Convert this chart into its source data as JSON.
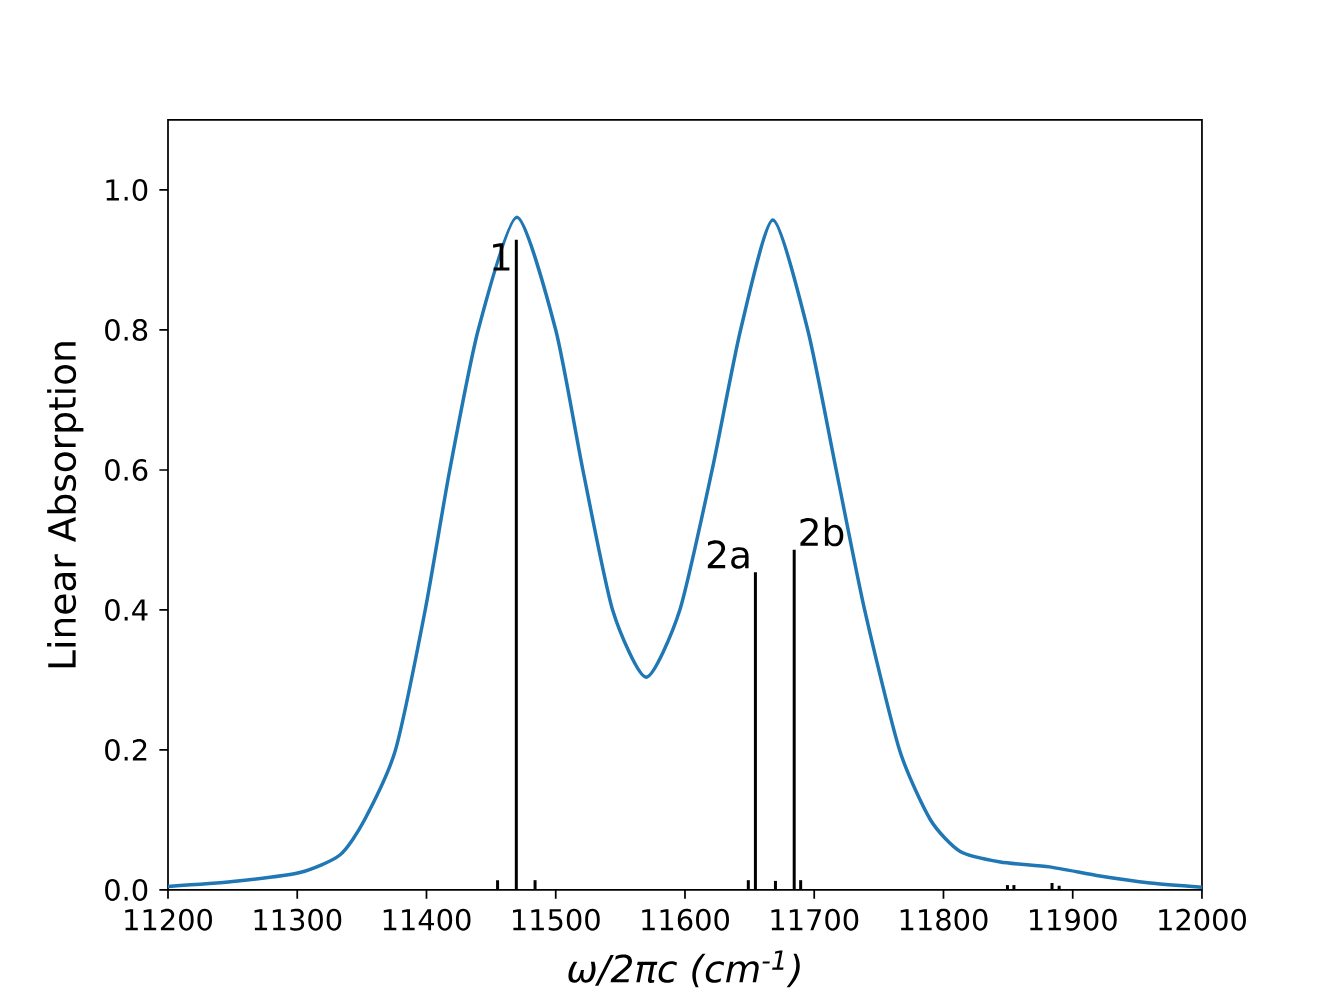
{
  "chart_data": {
    "type": "line",
    "xlabel": "ω/2πc (cm$^{-1}$)",
    "ylabel": "Linear Absorption",
    "xlim": [
      11200,
      12000
    ],
    "ylim": [
      0,
      1.1
    ],
    "xticks": [
      11200,
      11300,
      11400,
      11500,
      11600,
      11700,
      11800,
      11900,
      12000
    ],
    "yticks": [
      {
        "value": 0,
        "label": "0.0"
      },
      {
        "value": 0.2,
        "label": "0.2"
      },
      {
        "value": 0.4,
        "label": "0.4"
      },
      {
        "value": 0.6,
        "label": "0.6"
      },
      {
        "value": 0.8,
        "label": "0.8"
      },
      {
        "value": 1.0,
        "label": "1.0"
      }
    ],
    "series": [
      {
        "color": "#1f77b4",
        "x": [
          11200,
          11250,
          11302,
          11333,
          11352,
          11376,
          11399,
          11418,
          11440,
          11470,
          11500,
          11521,
          11544,
          11570,
          11596,
          11621,
          11643,
          11668,
          11695,
          11717,
          11739,
          11766,
          11790,
          11813,
          11844,
          11882,
          11921,
          11960,
          12000
        ],
        "values": [
          0.005,
          0.012,
          0.025,
          0.05,
          0.1,
          0.2,
          0.4,
          0.6,
          0.8,
          0.961,
          0.8,
          0.6,
          0.4,
          0.304,
          0.4,
          0.6,
          0.8,
          0.957,
          0.8,
          0.6,
          0.4,
          0.2,
          0.1,
          0.055,
          0.04,
          0.033,
          0.02,
          0.01,
          0.004
        ]
      },
      {
        "type": "bar",
        "color": "#000000",
        "x": [
          11455,
          11469.5,
          11484,
          11649,
          11654.5,
          11670,
          11684.5,
          11689.5,
          11849.5,
          11854.5,
          11884,
          11889.5
        ],
        "values": [
          0.014,
          0.929,
          0.014,
          0.014,
          0.454,
          0.013,
          0.486,
          0.014,
          0.007,
          0.007,
          0.01,
          0.006
        ]
      }
    ],
    "annotations": [
      {
        "text": "1",
        "x": 11469.5,
        "y": 0.929
      },
      {
        "text": "2a",
        "x": 11654.5,
        "y": 0.454
      },
      {
        "text": "2b",
        "x": 11684.5,
        "y": 0.486
      }
    ]
  }
}
